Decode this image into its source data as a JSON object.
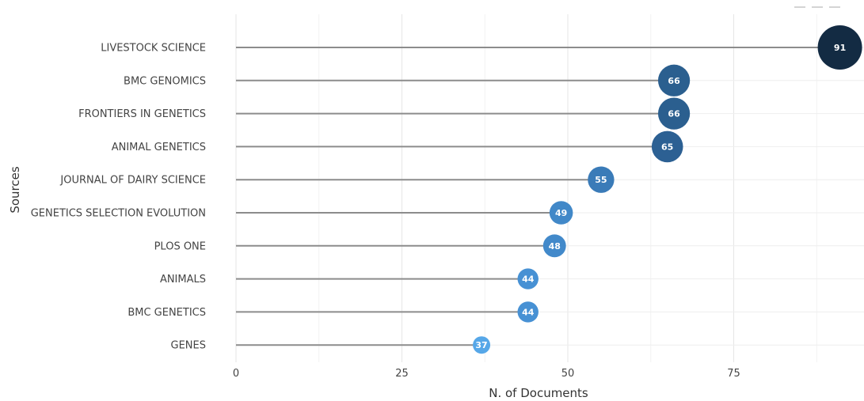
{
  "chart_data": {
    "type": "lollipop",
    "title": "",
    "xlabel": "N. of Documents",
    "ylabel": "Sources",
    "xlim": [
      0,
      95
    ],
    "xticks": [
      0,
      25,
      50,
      75
    ],
    "grid": true,
    "categories": [
      "LIVESTOCK SCIENCE",
      "BMC GENOMICS",
      "FRONTIERS IN GENETICS",
      "ANIMAL GENETICS",
      "JOURNAL OF DAIRY SCIENCE",
      "GENETICS SELECTION EVOLUTION",
      "PLOS ONE",
      "ANIMALS",
      "BMC GENETICS",
      "GENES"
    ],
    "values": [
      91,
      66,
      66,
      65,
      55,
      49,
      48,
      44,
      44,
      37
    ],
    "colors": [
      "#132b43",
      "#2b5f8f",
      "#2b5f8f",
      "#2c6093",
      "#3a7bb8",
      "#4188c8",
      "#4289ca",
      "#4791d4",
      "#4791d4",
      "#56a7e8"
    ]
  },
  "toolbar": {
    "icons": [
      "zoom-icon",
      "pan-icon",
      "reset-icon"
    ]
  }
}
